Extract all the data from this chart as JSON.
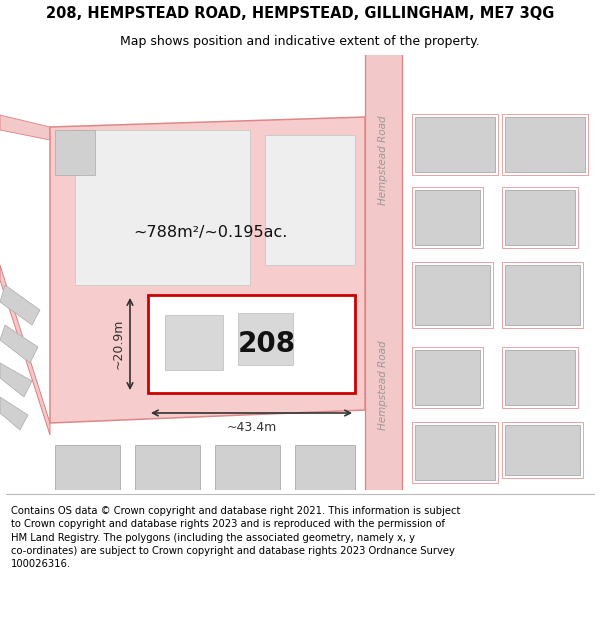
{
  "title": "208, HEMPSTEAD ROAD, HEMPSTEAD, GILLINGHAM, ME7 3QG",
  "subtitle": "Map shows position and indicative extent of the property.",
  "footer": "Contains OS data © Crown copyright and database right 2021. This information is subject\nto Crown copyright and database rights 2023 and is reproduced with the permission of\nHM Land Registry. The polygons (including the associated geometry, namely x, y\nco-ordinates) are subject to Crown copyright and database rights 2023 Ordnance Survey\n100026316.",
  "bg_color": "#ffffff",
  "map_bg": "#ffffff",
  "road_fill": "#f2c8c8",
  "road_edge": "#e08080",
  "building_fill": "#d0d0d0",
  "building_edge": "#aaaaaa",
  "pink_fill": "#f7cccc",
  "pink_edge": "#dd8888",
  "red_fill": "#ffffff",
  "red_edge": "#cc0000",
  "dim_color": "#333333",
  "road_label_color": "#999999",
  "area_label": "~788m²/~0.195ac.",
  "number_label": "208",
  "dim_w": "~43.4m",
  "dim_h": "~20.9m",
  "road_name": "Hempstead Road",
  "title_fontsize": 10.5,
  "subtitle_fontsize": 9,
  "footer_fontsize": 7.2
}
